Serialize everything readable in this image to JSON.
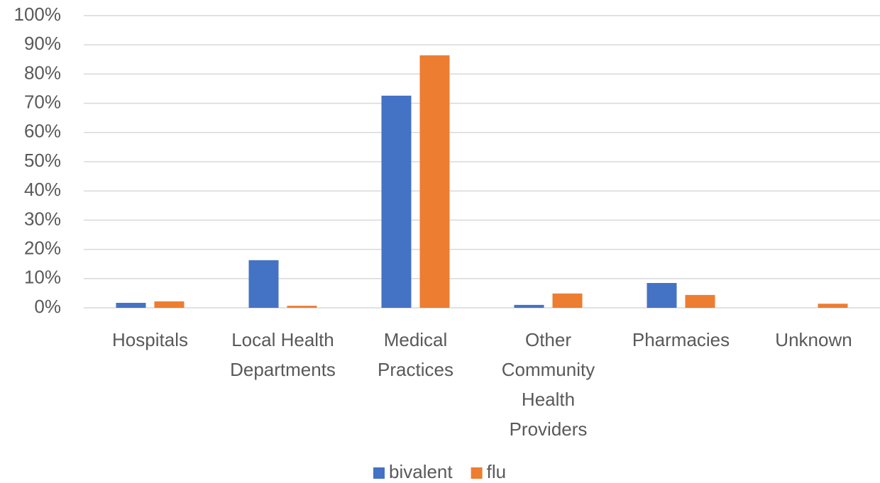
{
  "chart_data": {
    "type": "bar",
    "categories": [
      "Hospitals",
      "Local Health Departments",
      "Medical Practices",
      "Other Community Health Providers",
      "Pharmacies",
      "Unknown"
    ],
    "series": [
      {
        "name": "bivalent",
        "color": "#4472c4",
        "values": [
          1.7,
          16.3,
          72.6,
          1.0,
          8.5,
          0
        ]
      },
      {
        "name": "flu",
        "color": "#ed7d31",
        "values": [
          2.2,
          0.7,
          86.4,
          4.9,
          4.4,
          1.4
        ]
      }
    ],
    "ylim": [
      0,
      100
    ],
    "yticks": [
      {
        "value": 0,
        "label": "0%"
      },
      {
        "value": 10,
        "label": "10%"
      },
      {
        "value": 20,
        "label": "20%"
      },
      {
        "value": 30,
        "label": "30%"
      },
      {
        "value": 40,
        "label": "40%"
      },
      {
        "value": 50,
        "label": "50%"
      },
      {
        "value": 60,
        "label": "60%"
      },
      {
        "value": 70,
        "label": "70%"
      },
      {
        "value": 80,
        "label": "80%"
      },
      {
        "value": 90,
        "label": "90%"
      },
      {
        "value": 100,
        "label": "100%"
      }
    ],
    "grid": true,
    "legend": "bottom"
  }
}
